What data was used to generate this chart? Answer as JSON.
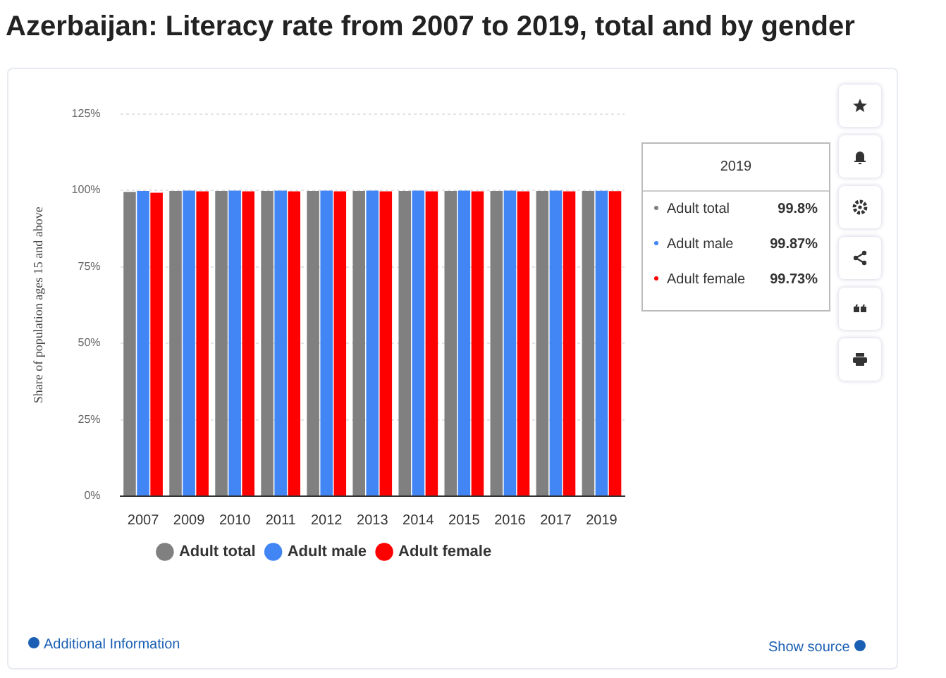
{
  "chart_data": {
    "type": "bar",
    "title": "Azerbaijan: Literacy rate from 2007 to 2019, total and by gender",
    "ylabel": "Share of population ages 15 and above",
    "categories": [
      "2007",
      "2009",
      "2010",
      "2011",
      "2012",
      "2013",
      "2014",
      "2015",
      "2016",
      "2017",
      "2019"
    ],
    "series": [
      {
        "name": "Adult total",
        "color": "#808080",
        "values": [
          99.5,
          99.8,
          99.8,
          99.8,
          99.8,
          99.8,
          99.8,
          99.8,
          99.8,
          99.8,
          99.8
        ]
      },
      {
        "name": "Adult male",
        "color": "#4285f4",
        "values": [
          99.8,
          99.9,
          99.9,
          99.9,
          99.9,
          99.9,
          99.9,
          99.9,
          99.9,
          99.9,
          99.87
        ]
      },
      {
        "name": "Adult female",
        "color": "#ff0000",
        "values": [
          99.2,
          99.7,
          99.7,
          99.7,
          99.7,
          99.7,
          99.7,
          99.7,
          99.7,
          99.7,
          99.73
        ]
      }
    ],
    "ylim": [
      0,
      125
    ],
    "yticks": [
      {
        "value": 0,
        "label": "0%"
      },
      {
        "value": 25,
        "label": "25%"
      },
      {
        "value": 50,
        "label": "50%"
      },
      {
        "value": 75,
        "label": "75%"
      },
      {
        "value": 100,
        "label": "100%"
      },
      {
        "value": 125,
        "label": "125%"
      }
    ],
    "grid": "y",
    "legend": "bottom",
    "annotations": [
      "2019",
      "Adult total 99.8%",
      "Adult male 99.87%",
      "Adult female 99.73%",
      "Additional Information",
      "Show source"
    ]
  }
}
